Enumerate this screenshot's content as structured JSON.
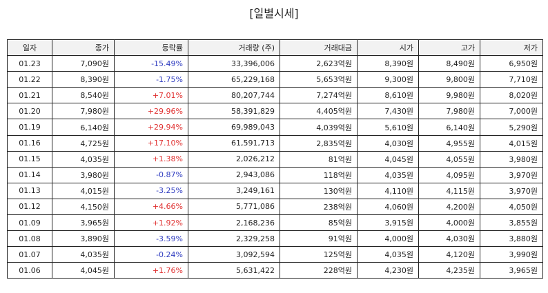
{
  "title": "[일별시세]",
  "columns": [
    "일자",
    "종가",
    "등락률",
    "거래량 (주)",
    "거래대금",
    "시가",
    "고가",
    "저가"
  ],
  "rows": [
    {
      "date": "01.23",
      "close": "7,090원",
      "change": "-15.49%",
      "volume": "33,396,006",
      "amount": "2,623억원",
      "open": "8,390원",
      "high": "8,490원",
      "low": "6,950원"
    },
    {
      "date": "01.22",
      "close": "8,390원",
      "change": "-1.75%",
      "volume": "65,229,168",
      "amount": "5,653억원",
      "open": "9,300원",
      "high": "9,800원",
      "low": "7,710원"
    },
    {
      "date": "01.21",
      "close": "8,540원",
      "change": "+7.01%",
      "volume": "80,207,744",
      "amount": "7,274억원",
      "open": "8,610원",
      "high": "9,980원",
      "low": "8,020원"
    },
    {
      "date": "01.20",
      "close": "7,980원",
      "change": "+29.96%",
      "volume": "58,391,829",
      "amount": "4,405억원",
      "open": "7,430원",
      "high": "7,980원",
      "low": "7,000원"
    },
    {
      "date": "01.19",
      "close": "6,140원",
      "change": "+29.94%",
      "volume": "69,989,043",
      "amount": "4,039억원",
      "open": "5,610원",
      "high": "6,140원",
      "low": "5,290원"
    },
    {
      "date": "01.16",
      "close": "4,725원",
      "change": "+17.10%",
      "volume": "61,591,713",
      "amount": "2,835억원",
      "open": "4,030원",
      "high": "4,955원",
      "low": "4,015원"
    },
    {
      "date": "01.15",
      "close": "4,035원",
      "change": "+1.38%",
      "volume": "2,026,212",
      "amount": "81억원",
      "open": "4,045원",
      "high": "4,055원",
      "low": "3,980원"
    },
    {
      "date": "01.14",
      "close": "3,980원",
      "change": "-0.87%",
      "volume": "2,943,086",
      "amount": "118억원",
      "open": "4,035원",
      "high": "4,095원",
      "low": "3,970원"
    },
    {
      "date": "01.13",
      "close": "4,015원",
      "change": "-3.25%",
      "volume": "3,249,161",
      "amount": "130억원",
      "open": "4,110원",
      "high": "4,115원",
      "low": "3,970원"
    },
    {
      "date": "01.12",
      "close": "4,150원",
      "change": "+4.66%",
      "volume": "5,771,086",
      "amount": "238억원",
      "open": "4,060원",
      "high": "4,200원",
      "low": "4,050원"
    },
    {
      "date": "01.09",
      "close": "3,965원",
      "change": "+1.92%",
      "volume": "2,168,236",
      "amount": "85억원",
      "open": "3,915원",
      "high": "4,000원",
      "low": "3,855원"
    },
    {
      "date": "01.08",
      "close": "3,890원",
      "change": "-3.59%",
      "volume": "2,329,258",
      "amount": "91억원",
      "open": "4,000원",
      "high": "4,030원",
      "low": "3,880원"
    },
    {
      "date": "01.07",
      "close": "4,035원",
      "change": "-0.24%",
      "volume": "3,092,594",
      "amount": "125억원",
      "open": "4,035원",
      "high": "4,120원",
      "low": "3,990원"
    },
    {
      "date": "01.06",
      "close": "4,045원",
      "change": "+1.76%",
      "volume": "5,631,422",
      "amount": "228억원",
      "open": "4,230원",
      "high": "4,235원",
      "low": "3,965원"
    }
  ],
  "colors": {
    "up": "#e03030",
    "down": "#2f3cc0",
    "header_bg": "#f2f2f2",
    "border": "#222222"
  }
}
